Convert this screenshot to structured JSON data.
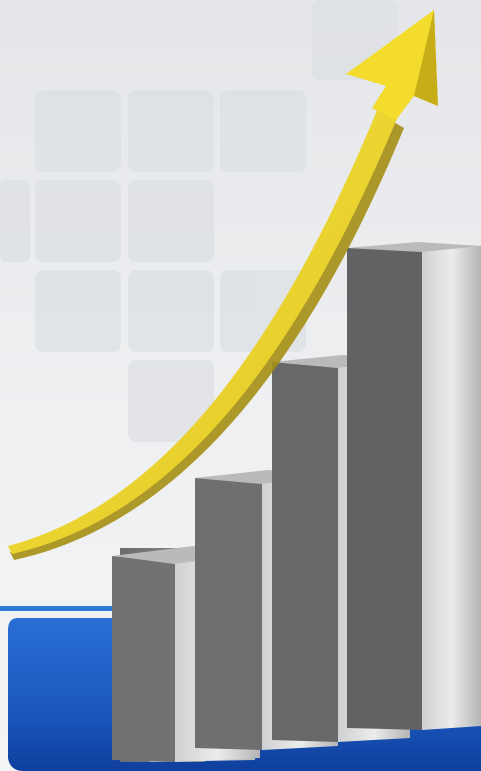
{
  "scene": {
    "subject": "rising-3d-bar-graph-with-arrow",
    "bar_count": 4,
    "bar_levels": [
      0.46,
      0.6,
      0.76,
      1.0
    ],
    "colors": {
      "background": "#e8eaed",
      "tile": "#dfe2e6",
      "panel_blue": "#1d5fc4",
      "panel_blue_dark": "#0e3f9e",
      "divider_line": "#2a7ad8",
      "arrow_yellow": "#f3dc2b",
      "arrow_shadow": "#9a8a10",
      "bar_dark": "#5f6163",
      "bar_light": "#d9dadb",
      "bar_top": "#b9babb"
    }
  }
}
